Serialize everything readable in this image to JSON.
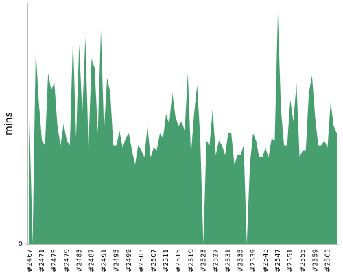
{
  "chart_data": {
    "type": "area",
    "ylabel": "mins",
    "color": "#479e6f",
    "categories": [
      "#2467",
      null,
      null,
      null,
      "#2471",
      null,
      null,
      null,
      "#2475",
      null,
      null,
      null,
      "#2479",
      null,
      null,
      null,
      "#2483",
      null,
      null,
      null,
      "#2487",
      null,
      null,
      null,
      "#2491",
      null,
      null,
      null,
      "#2495",
      null,
      null,
      null,
      "#2499",
      null,
      null,
      null,
      "#2503",
      null,
      null,
      null,
      "#2507",
      null,
      null,
      null,
      "#2511",
      null,
      null,
      null,
      "#2515",
      null,
      null,
      null,
      "#2519",
      null,
      null,
      null,
      "#2523",
      null,
      null,
      null,
      "#2527",
      null,
      null,
      null,
      "#2531",
      null,
      null,
      null,
      "#2535",
      null,
      null,
      null,
      "#2539",
      null,
      null,
      null,
      "#2543",
      null,
      null,
      null,
      "#2547",
      null,
      null,
      null,
      "#2551",
      null,
      null,
      null,
      "#2555",
      null,
      null,
      null,
      "#2559",
      null,
      null,
      null,
      "#2563",
      null,
      null,
      null
    ],
    "values": [
      51,
      0,
      81,
      59,
      43,
      41,
      71,
      64,
      67,
      49,
      41,
      50,
      43,
      41,
      86,
      44,
      83,
      54,
      86,
      40,
      77,
      73,
      46,
      89,
      47,
      69,
      63,
      41,
      41,
      47,
      40,
      44,
      46,
      39,
      33,
      41,
      39,
      36,
      49,
      36,
      40,
      39,
      46,
      44,
      54,
      50,
      63,
      53,
      49,
      51,
      47,
      71,
      37,
      54,
      66,
      44,
      0,
      43,
      41,
      56,
      37,
      43,
      41,
      37,
      46,
      46,
      33,
      37,
      37,
      41,
      0,
      33,
      46,
      43,
      36,
      36,
      40,
      36,
      44,
      43,
      96,
      56,
      41,
      41,
      60,
      51,
      67,
      36,
      39,
      39,
      63,
      70,
      53,
      41,
      41,
      43,
      40,
      59,
      49,
      46
    ],
    "ylim": [
      0,
      100
    ],
    "yticks": [
      0
    ]
  }
}
